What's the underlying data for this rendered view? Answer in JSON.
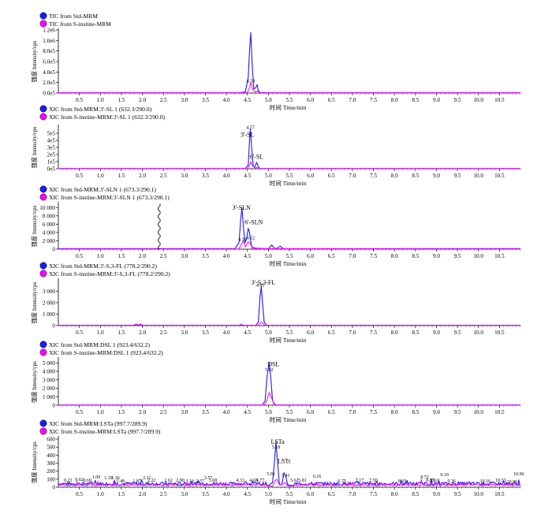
{
  "colors": {
    "std": "#1a1aff",
    "sample": "#ff00ff",
    "axis": "#000000"
  },
  "xlabel": "时间 Time/min",
  "ylabel": "强度 Intensity/cps",
  "chart_data": [
    {
      "type": "line",
      "legend": [
        "TIC from Std-MRM",
        "TIC from S-instine-MRM"
      ],
      "xlim": [
        0,
        11
      ],
      "ylim": [
        0,
        1200000
      ],
      "xticks": [
        0.5,
        1.0,
        1.5,
        2.0,
        2.5,
        3.0,
        3.5,
        4.0,
        4.5,
        5.0,
        5.5,
        6.0,
        6.5,
        7.0,
        7.5,
        8.0,
        8.5,
        9.0,
        9.5,
        10.0,
        10.5
      ],
      "yticks": [
        0,
        200000,
        400000,
        600000,
        800000,
        1000000,
        1200000
      ],
      "ytick_labels": [
        "0.0e5",
        "2.0e5",
        "4.0e5",
        "6.0e5",
        "8.0e5",
        "1.0e6",
        "1.2e6"
      ],
      "series": [
        {
          "name": "TIC from Std-MRM",
          "x": [
            0.0,
            4.3,
            4.45,
            4.52,
            4.55,
            4.58,
            4.61,
            4.65,
            4.7,
            4.73,
            4.76,
            4.8,
            5.0,
            11.0
          ],
          "y": [
            5000,
            5000,
            20000,
            300000,
            800000,
            1150000,
            600000,
            80000,
            100000,
            160000,
            50000,
            8000,
            5000,
            5000
          ]
        },
        {
          "name": "TIC from S-instine-MRM",
          "x": [
            0.0,
            4.3,
            4.5,
            4.55,
            4.58,
            4.62,
            4.68,
            4.73,
            4.8,
            11.0
          ],
          "y": [
            3000,
            3000,
            10000,
            100000,
            200000,
            80000,
            20000,
            40000,
            5000,
            3000
          ]
        }
      ],
      "annotations": [
        {
          "x": 4.58,
          "y": 200000,
          "text": "4.58"
        }
      ]
    },
    {
      "type": "line",
      "legend": [
        "XIC from Std-MRM:3'-SL 1 (632.3/290.0)",
        "XIC from S-instine-MRM:3'-SL 1 (632.3/290.0)"
      ],
      "xlim": [
        0,
        11
      ],
      "ylim": [
        0,
        600000
      ],
      "xticks": [
        0.5,
        1.0,
        1.5,
        2.0,
        2.5,
        3.0,
        3.5,
        4.0,
        4.5,
        5.0,
        5.5,
        6.0,
        6.5,
        7.0,
        7.5,
        8.0,
        8.5,
        9.0,
        9.5,
        10.0,
        10.5
      ],
      "yticks": [
        0,
        100000,
        200000,
        300000,
        400000,
        500000
      ],
      "ytick_labels": [
        "0e5",
        "1e5",
        "2e5",
        "3e5",
        "4e5",
        "5e5"
      ],
      "series": [
        {
          "name": "XIC from Std-MRM:3'-SL 1 (632.3/290.0)",
          "x": [
            0.0,
            4.45,
            4.52,
            4.55,
            4.57,
            4.6,
            4.64,
            4.68,
            4.72,
            4.76,
            4.8,
            11.0
          ],
          "y": [
            2000,
            2000,
            50000,
            400000,
            560000,
            300000,
            30000,
            30000,
            90000,
            30000,
            2000,
            2000
          ]
        },
        {
          "name": "XIC from S-instine-MRM:3'-SL 1 (632.3/290.0)",
          "x": [
            0.0,
            4.5,
            4.55,
            4.58,
            4.62,
            4.68,
            4.72,
            4.78,
            11.0
          ],
          "y": [
            1000,
            1000,
            50000,
            100000,
            40000,
            10000,
            20000,
            1000,
            1000
          ]
        }
      ],
      "annotations": [
        {
          "x": 4.57,
          "y": 560000,
          "text": "4.57"
        },
        {
          "x": 4.5,
          "y": 450000,
          "text": "3'-SL"
        },
        {
          "x": 4.72,
          "y": 140000,
          "text": "6'-SL"
        }
      ]
    },
    {
      "type": "line",
      "legend": [
        "XIC from Std-MRM:3'-SLN 1 (673.3/290.1)",
        "XIC from S-instine-MRM:3'-SLN 1 (673.3/290.1)"
      ],
      "xlim": [
        0,
        11
      ],
      "ylim": [
        0,
        11000
      ],
      "xticks": [
        0.5,
        1.0,
        1.5,
        2.0,
        2.5,
        3.0,
        3.5,
        4.0,
        4.5,
        5.0,
        5.5,
        6.0,
        6.5,
        7.0,
        7.5,
        8.0,
        8.5,
        9.0,
        9.5,
        10.0,
        10.5
      ],
      "yticks": [
        0,
        2000,
        4000,
        6000,
        8000,
        10000
      ],
      "ytick_labels": [
        "0",
        "2 000",
        "4 000",
        "6 000",
        "8 000",
        "10 000"
      ],
      "series": [
        {
          "name": "XIC from Std-MRM:3'-SLN 1 (673.3/290.1)",
          "x": [
            0.0,
            4.2,
            4.3,
            4.34,
            4.37,
            4.4,
            4.44,
            4.48,
            4.52,
            4.55,
            4.6,
            4.7,
            5.0,
            5.08,
            5.15,
            5.2,
            5.28,
            5.35,
            11.0
          ],
          "y": [
            100,
            100,
            1500,
            7000,
            10000,
            6000,
            1500,
            2500,
            5000,
            4000,
            600,
            200,
            100,
            1000,
            100,
            200,
            700,
            100,
            100
          ]
        },
        {
          "name": "XIC from S-instine-MRM:3'-SLN 1 (673.3/290.1)",
          "x": [
            0.0,
            4.3,
            4.36,
            4.4,
            4.45,
            4.52,
            4.56,
            4.62,
            11.0
          ],
          "y": [
            50,
            50,
            1200,
            2000,
            500,
            1800,
            1500,
            100,
            50
          ]
        }
      ],
      "annotations": [
        {
          "x": 4.36,
          "y": 9500,
          "text": "3'-SLN"
        },
        {
          "x": 4.65,
          "y": 6000,
          "text": "6'-SLN"
        },
        {
          "x": 4.38,
          "y": 2000,
          "text": "4.38"
        },
        {
          "x": 4.58,
          "y": 2400,
          "text": "4.52"
        }
      ],
      "spike_x": 2.4
    },
    {
      "type": "line",
      "legend": [
        "XIC from Std-MRM:3'-S,3-FL (778.2/290.2)",
        "XIC from S-instine-MRM:3'-S,3-FL (778.2/290.2)"
      ],
      "xlim": [
        0,
        11
      ],
      "ylim": [
        0,
        4000
      ],
      "xticks": [
        0.5,
        1.0,
        1.5,
        2.0,
        2.5,
        3.0,
        3.5,
        4.0,
        4.5,
        5.0,
        5.5,
        6.0,
        6.5,
        7.0,
        7.5,
        8.0,
        8.5,
        9.0,
        9.5,
        10.0,
        10.5
      ],
      "yticks": [
        0,
        1000,
        2000,
        3000
      ],
      "ytick_labels": [
        "0",
        "1 000",
        "2 000",
        "3 000"
      ],
      "series": [
        {
          "name": "XIC from Std-MRM:3'-S,3-FL (778.2/290.2)",
          "x": [
            0.0,
            4.7,
            4.76,
            4.8,
            4.83,
            4.86,
            4.9,
            4.96,
            11.0
          ],
          "y": [
            20,
            20,
            300,
            2500,
            3400,
            2000,
            300,
            20,
            20
          ]
        },
        {
          "name": "XIC from S-instine-MRM:3'-S,3-FL (778.2/290.2)",
          "x": [
            0.0,
            1.8,
            1.85,
            1.9,
            1.95,
            2.0,
            4.3,
            4.35,
            4.4,
            4.75,
            4.83,
            4.92,
            11.0
          ],
          "y": [
            20,
            20,
            150,
            20,
            150,
            20,
            20,
            120,
            20,
            20,
            300,
            20,
            20
          ]
        }
      ],
      "annotations": [
        {
          "x": 4.81,
          "y": 3400,
          "text": "4.81"
        },
        {
          "x": 4.88,
          "y": 3600,
          "text": "3'-S,3-FL"
        }
      ]
    },
    {
      "type": "line",
      "legend": [
        "XIC from Std-MRM:DSL 1 (923.4/632.2)",
        "XIC from S-instine-MRM:DSL 1 (923.4/632.2)"
      ],
      "xlim": [
        0,
        11
      ],
      "ylim": [
        0,
        5500
      ],
      "xticks": [
        0.5,
        1.0,
        1.5,
        2.0,
        2.5,
        3.0,
        3.5,
        4.0,
        4.5,
        5.0,
        5.5,
        6.0,
        6.5,
        7.0,
        7.5,
        8.0,
        8.5,
        9.0,
        9.5,
        10.0,
        10.5
      ],
      "yticks": [
        0,
        1000,
        2000,
        3000,
        4000,
        5000
      ],
      "ytick_labels": [
        "0",
        "1 000",
        "2 000",
        "3 000",
        "4 000",
        "5 000"
      ],
      "series": [
        {
          "name": "XIC from Std-MRM:DSL 1 (923.4/632.2)",
          "x": [
            0.0,
            4.85,
            4.92,
            4.97,
            5.02,
            5.06,
            5.1,
            5.16,
            11.0
          ],
          "y": [
            20,
            20,
            500,
            3500,
            5000,
            3000,
            500,
            20,
            20
          ]
        },
        {
          "name": "XIC from S-instine-MRM:DSL 1 (923.4/632.2)",
          "x": [
            0.0,
            4.9,
            4.96,
            5.02,
            5.08,
            5.14,
            11.0
          ],
          "y": [
            10,
            10,
            500,
            1500,
            800,
            10,
            10
          ]
        }
      ],
      "annotations": [
        {
          "x": 5.02,
          "y": 4000,
          "text": "5.02"
        },
        {
          "x": 5.12,
          "y": 4600,
          "text": "DSL"
        }
      ]
    },
    {
      "type": "line",
      "legend": [
        "XIC from Std-MRM:LSTa (997.7/289.9)",
        "XIC from S-instine-MRM:LSTa (997.7/289.9)"
      ],
      "xlim": [
        0,
        11
      ],
      "ylim": [
        0,
        620
      ],
      "xticks": [
        0.5,
        1.0,
        1.5,
        2.0,
        2.5,
        3.0,
        3.5,
        4.0,
        4.5,
        5.0,
        5.5,
        6.0,
        6.5,
        7.0,
        7.5,
        8.0,
        8.5,
        9.0,
        9.5,
        10.0,
        10.5
      ],
      "yticks": [
        0,
        100,
        200,
        300,
        400,
        500,
        600
      ],
      "ytick_labels": [
        "0",
        "100",
        "200",
        "300",
        "400",
        "500",
        "600"
      ],
      "series": [
        {
          "name": "XIC from Std-MRM:LSTa (997.7/289.9)",
          "x": [
            0.0,
            5.0,
            5.1,
            5.14,
            5.18,
            5.22,
            5.26,
            5.32,
            5.37,
            5.41,
            5.46,
            5.55,
            11.0
          ],
          "y": [
            20,
            20,
            60,
            300,
            560,
            300,
            40,
            30,
            180,
            140,
            30,
            20,
            20
          ]
        },
        {
          "name": "XIC from S-instine-MRM:LSTa (997.7/289.9)",
          "x": [
            0.0,
            5.1,
            5.16,
            5.2,
            5.26,
            5.35,
            5.4,
            5.46,
            11.0
          ],
          "y": [
            15,
            15,
            80,
            100,
            30,
            40,
            60,
            15,
            15
          ]
        }
      ],
      "annotations": [
        {
          "x": 5.22,
          "y": 540,
          "text": "LSTa"
        },
        {
          "x": 5.38,
          "y": 300,
          "text": "LSTc"
        },
        {
          "x": 5.18,
          "y": 480,
          "text": "5.18"
        },
        {
          "x": 5.06,
          "y": 150,
          "text": "5.06"
        },
        {
          "x": 4.33,
          "y": 70,
          "text": "4.33"
        },
        {
          "x": 4.65,
          "y": 70,
          "text": "4.65"
        },
        {
          "x": 4.8,
          "y": 70,
          "text": "4.77"
        },
        {
          "x": 5.41,
          "y": 130,
          "text": "5.41"
        },
        {
          "x": 5.62,
          "y": 70,
          "text": "5.62"
        },
        {
          "x": 5.81,
          "y": 70,
          "text": "5.81"
        },
        {
          "x": 6.16,
          "y": 120,
          "text": "6.16"
        },
        {
          "x": 6.75,
          "y": 60,
          "text": "6.75"
        },
        {
          "x": 7.17,
          "y": 70,
          "text": "7.17"
        },
        {
          "x": 7.5,
          "y": 70,
          "text": "7.50"
        },
        {
          "x": 8.19,
          "y": 60,
          "text": "8.19"
        },
        {
          "x": 8.72,
          "y": 110,
          "text": "8.72"
        },
        {
          "x": 8.85,
          "y": 70,
          "text": "8.85"
        },
        {
          "x": 9.0,
          "y": 70,
          "text": "9.0"
        },
        {
          "x": 9.19,
          "y": 140,
          "text": "9.19"
        },
        {
          "x": 9.36,
          "y": 60,
          "text": "9.36"
        },
        {
          "x": 10.16,
          "y": 60,
          "text": "10.16"
        },
        {
          "x": 10.53,
          "y": 70,
          "text": "10.53"
        },
        {
          "x": 10.8,
          "y": 50,
          "text": "10.80"
        },
        {
          "x": 10.96,
          "y": 150,
          "text": "10.96"
        },
        {
          "x": 0.23,
          "y": 70,
          "text": "0.23"
        },
        {
          "x": 0.5,
          "y": 80,
          "text": "0.62"
        },
        {
          "x": 0.69,
          "y": 70,
          "text": "0.69"
        },
        {
          "x": 0.9,
          "y": 110,
          "text": "1.09"
        },
        {
          "x": 1.19,
          "y": 100,
          "text": "1.19"
        },
        {
          "x": 1.36,
          "y": 100,
          "text": "1.36"
        },
        {
          "x": 1.48,
          "y": 60,
          "text": "1.48"
        },
        {
          "x": 1.87,
          "y": 60,
          "text": "1.87"
        },
        {
          "x": 2.11,
          "y": 100,
          "text": "2.11"
        },
        {
          "x": 2.22,
          "y": 70,
          "text": "2.22"
        },
        {
          "x": 2.62,
          "y": 70,
          "text": "2.62"
        },
        {
          "x": 2.9,
          "y": 70,
          "text": "2.90"
        },
        {
          "x": 3.13,
          "y": 60,
          "text": "3.13"
        },
        {
          "x": 3.37,
          "y": 60,
          "text": "3.37"
        },
        {
          "x": 3.57,
          "y": 100,
          "text": "3.57"
        },
        {
          "x": 3.68,
          "y": 70,
          "text": "3.68"
        }
      ],
      "noisy": true
    }
  ]
}
